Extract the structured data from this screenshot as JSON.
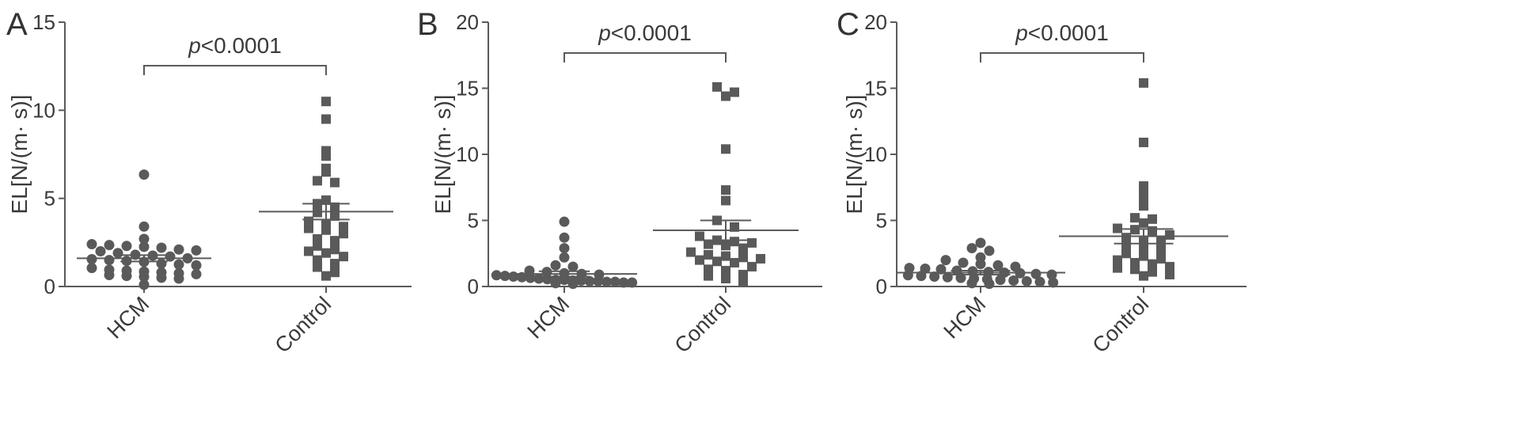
{
  "colors": {
    "marker": "#5a5a5a",
    "axis": "#5a5a5a",
    "text": "#3a3a3a"
  },
  "chart_data": [
    {
      "type": "scatter",
      "panel_label": "A",
      "ylabel": "EL[N/(m· s)]",
      "ylim": [
        0,
        15
      ],
      "yticks": [
        "0",
        "5",
        "10",
        "15"
      ],
      "categories": [
        "HCM",
        "Control"
      ],
      "markers": [
        "circle",
        "square"
      ],
      "significance": {
        "p_prefix": "p",
        "p_value": "<0.0001"
      },
      "series": [
        {
          "values": [
            6.35,
            3.4,
            2.7,
            2.4,
            2.35,
            2.3,
            2.25,
            2.2,
            2.1,
            2.05,
            2.0,
            1.9,
            1.8,
            1.75,
            1.7,
            1.6,
            1.55,
            1.5,
            1.45,
            1.4,
            1.3,
            1.25,
            1.2,
            1.05,
            0.95,
            0.9,
            0.85,
            0.8,
            0.75,
            0.7,
            0.65,
            0.6,
            0.55,
            0.5,
            0.45,
            0.1
          ],
          "mean": 1.6,
          "sem": 0.18
        },
        {
          "values": [
            10.5,
            9.5,
            7.7,
            7.4,
            6.7,
            6.5,
            6.0,
            5.9,
            4.9,
            4.7,
            4.5,
            4.2,
            4.0,
            3.7,
            3.5,
            3.4,
            3.3,
            3.2,
            3.0,
            2.7,
            2.6,
            2.3,
            2.1,
            2.0,
            1.9,
            1.7,
            1.5,
            1.3,
            1.1,
            0.8,
            0.6
          ],
          "mean": 4.25,
          "sem": 0.45
        }
      ]
    },
    {
      "type": "scatter",
      "panel_label": "B",
      "ylabel": "EL[N/(m· s)]",
      "ylim": [
        0,
        20
      ],
      "yticks": [
        "0",
        "5",
        "10",
        "15",
        "20"
      ],
      "categories": [
        "HCM",
        "Control"
      ],
      "markers": [
        "circle",
        "square"
      ],
      "significance": {
        "p_prefix": "p",
        "p_value": "<0.0001"
      },
      "series": [
        {
          "values": [
            4.9,
            3.7,
            2.9,
            2.2,
            1.6,
            1.5,
            1.2,
            1.1,
            1.0,
            0.95,
            0.9,
            0.85,
            0.8,
            0.75,
            0.7,
            0.65,
            0.6,
            0.55,
            0.5,
            0.5,
            0.45,
            0.45,
            0.4,
            0.4,
            0.35,
            0.35,
            0.3,
            0.3,
            0.25,
            0.2
          ],
          "mean": 0.95,
          "sem": 0.2
        },
        {
          "values": [
            15.1,
            14.7,
            14.4,
            10.4,
            7.3,
            6.5,
            5.0,
            4.5,
            3.8,
            3.5,
            3.4,
            3.3,
            3.2,
            3.1,
            2.9,
            2.6,
            2.4,
            2.3,
            2.2,
            2.1,
            2.0,
            1.9,
            1.8,
            1.5,
            1.3,
            1.2,
            0.9,
            0.8,
            0.6,
            0.4
          ],
          "mean": 4.25,
          "sem": 0.75
        }
      ]
    },
    {
      "type": "scatter",
      "panel_label": "C",
      "ylabel": "EL[N/(m· s)]",
      "ylim": [
        0,
        20
      ],
      "yticks": [
        "0",
        "5",
        "10",
        "15",
        "20"
      ],
      "categories": [
        "HCM",
        "Control"
      ],
      "markers": [
        "circle",
        "square"
      ],
      "significance": {
        "p_prefix": "p",
        "p_value": "<0.0001"
      },
      "series": [
        {
          "values": [
            3.3,
            2.9,
            2.7,
            2.2,
            2.0,
            1.8,
            1.7,
            1.6,
            1.5,
            1.4,
            1.35,
            1.3,
            1.2,
            1.15,
            1.1,
            1.05,
            1.0,
            0.95,
            0.9,
            0.85,
            0.8,
            0.75,
            0.7,
            0.65,
            0.6,
            0.55,
            0.5,
            0.45,
            0.4,
            0.35,
            0.3,
            0.25,
            0.2
          ],
          "mean": 1.05,
          "sem": 0.15
        },
        {
          "values": [
            15.4,
            10.9,
            7.6,
            7.1,
            6.4,
            6.1,
            5.2,
            5.1,
            4.8,
            4.4,
            4.3,
            4.2,
            3.9,
            3.7,
            3.5,
            3.4,
            3.0,
            2.9,
            2.7,
            2.5,
            2.3,
            2.1,
            2.0,
            1.8,
            1.7,
            1.5,
            1.4,
            1.3,
            1.1,
            0.9,
            0.8
          ],
          "mean": 3.8,
          "sem": 0.55
        }
      ]
    }
  ]
}
